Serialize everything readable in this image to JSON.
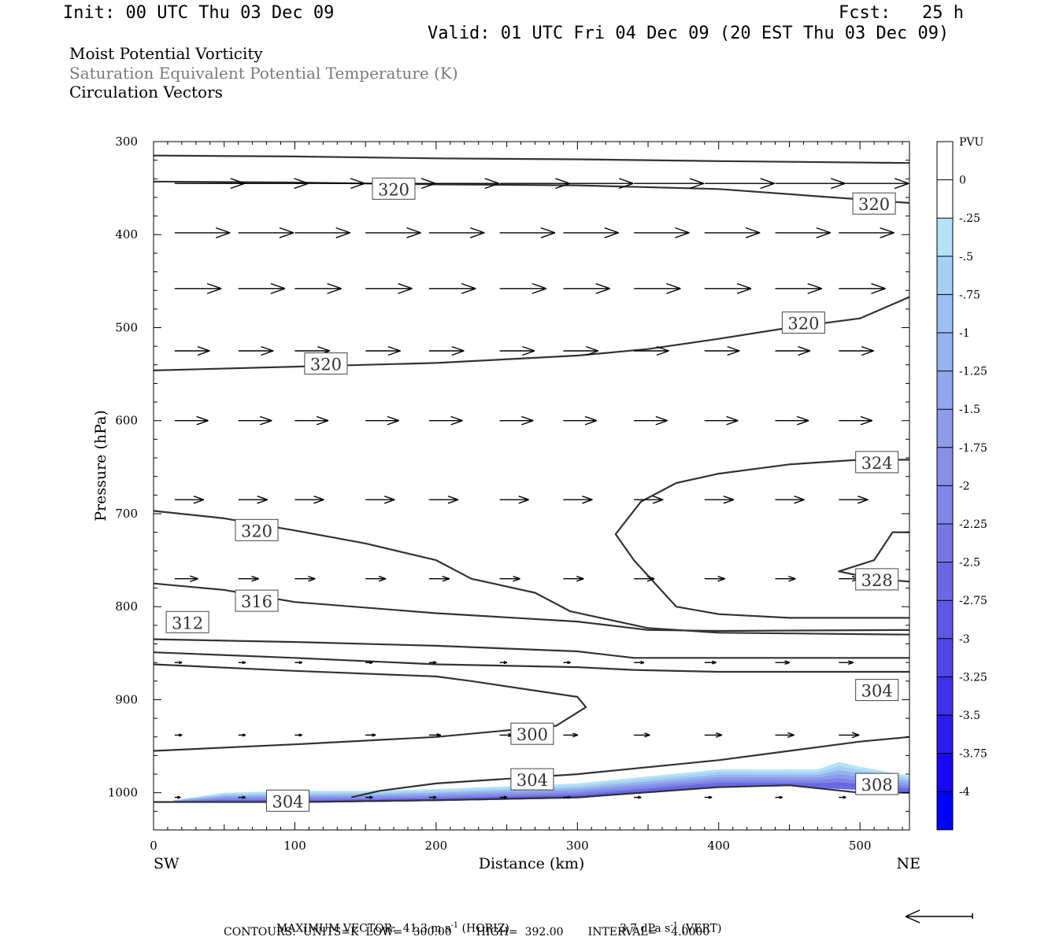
{
  "header": {
    "init": "Init: 00 UTC Thu 03 Dec 09",
    "fcst": "Fcst:   25 h",
    "valid": "Valid: 01 UTC Fri 04 Dec 09 (20 EST Thu 03 Dec 09)",
    "line1": "Moist Potential Vorticity",
    "line2": "Saturation Equivalent Potential Temperature (K)",
    "line3": "Circulation Vectors"
  },
  "footer": {
    "max_vector_prefix": "MAXIMUM VECTOR:  41.3 m s",
    "horiz_suffix": " (HORIZ)",
    "vert_prefix": "3.7 dPa s",
    "vert_suffix": " (VERT)",
    "exponent": "-1",
    "contours": "CONTOURS:  UNITS=K  LOW=   300.00       HIGH=  392.00       INTERVAL=    4.0000"
  },
  "chart_data": {
    "type": "line",
    "xlabel": "Distance (km)",
    "ylabel": "Pressure (hPa)",
    "xlim": [
      0,
      535
    ],
    "ylim": [
      1040,
      300
    ],
    "x_ticks": [
      "0",
      "100",
      "200",
      "300",
      "400",
      "500"
    ],
    "y_ticks": [
      "300",
      "400",
      "500",
      "600",
      "700",
      "800",
      "900",
      "1000"
    ],
    "x_end_labels": {
      "left": "SW",
      "right": "NE"
    },
    "colorbar": {
      "title": "PVU",
      "levels": [
        "0",
        "-.25",
        "-.5",
        "-.75",
        "-1",
        "-1.25",
        "-1.5",
        "-1.75",
        "-2",
        "-2.25",
        "-2.5",
        "-2.75",
        "-3",
        "-3.25",
        "-3.5",
        "-3.75",
        "-4"
      ],
      "colors": [
        "#ffffff",
        "#ffffff",
        "#b4e2f8",
        "#a5d0f5",
        "#9bbff2",
        "#97b2ef",
        "#92a7ec",
        "#8c9ae9",
        "#8690e8",
        "#7f85e6",
        "#7677e5",
        "#6b68e5",
        "#5f57e6",
        "#5145e8",
        "#3f30ea",
        "#2c1cee",
        "#1808f5",
        "#0000ff"
      ]
    },
    "contour_lines": [
      {
        "label": "320",
        "points": [
          [
            0,
            315
          ],
          [
            100,
            316
          ],
          [
            200,
            318
          ],
          [
            300,
            319
          ],
          [
            400,
            321
          ],
          [
            535,
            323
          ]
        ]
      },
      {
        "label": "320",
        "points": [
          [
            0,
            343
          ],
          [
            100,
            344
          ],
          [
            200,
            346
          ],
          [
            300,
            347
          ],
          [
            400,
            351
          ],
          [
            535,
            366
          ]
        ]
      },
      {
        "label": "320",
        "points": [
          [
            0,
            546
          ],
          [
            100,
            542
          ],
          [
            200,
            538
          ],
          [
            300,
            530
          ],
          [
            350,
            523
          ],
          [
            400,
            512
          ],
          [
            450,
            500
          ],
          [
            500,
            490
          ],
          [
            535,
            467
          ]
        ]
      },
      {
        "label": "324",
        "points": [
          [
            535,
            642
          ],
          [
            500,
            642
          ],
          [
            450,
            647
          ],
          [
            400,
            657
          ],
          [
            370,
            667
          ],
          [
            345,
            687
          ],
          [
            327,
            722
          ],
          [
            340,
            750
          ],
          [
            355,
            775
          ],
          [
            370,
            800
          ],
          [
            400,
            808
          ],
          [
            450,
            812
          ],
          [
            535,
            812
          ]
        ]
      },
      {
        "label": "328",
        "points": [
          [
            535,
            720
          ],
          [
            523,
            720
          ],
          [
            510,
            750
          ],
          [
            485,
            762
          ],
          [
            510,
            770
          ],
          [
            535,
            773
          ]
        ]
      },
      {
        "label": "320",
        "points": [
          [
            0,
            697
          ],
          [
            50,
            705
          ],
          [
            100,
            718
          ],
          [
            150,
            732
          ],
          [
            200,
            750
          ],
          [
            225,
            770
          ],
          [
            270,
            785
          ],
          [
            295,
            805
          ],
          [
            350,
            823
          ],
          [
            400,
            828
          ],
          [
            535,
            830
          ]
        ]
      },
      {
        "label": "316",
        "points": [
          [
            0,
            775
          ],
          [
            50,
            782
          ],
          [
            100,
            795
          ],
          [
            200,
            807
          ],
          [
            300,
            816
          ],
          [
            350,
            825
          ],
          [
            400,
            826
          ],
          [
            535,
            825
          ]
        ]
      },
      {
        "label": "312",
        "points": [
          [
            0,
            835
          ],
          [
            100,
            838
          ],
          [
            200,
            842
          ],
          [
            300,
            848
          ],
          [
            340,
            855
          ],
          [
            400,
            855
          ],
          [
            535,
            855
          ]
        ]
      },
      {
        "label": "308",
        "points": [
          [
            0,
            849
          ],
          [
            100,
            855
          ],
          [
            200,
            862
          ],
          [
            300,
            865
          ],
          [
            340,
            868
          ],
          [
            400,
            870
          ],
          [
            535,
            870
          ]
        ]
      },
      {
        "label": "304",
        "points": [
          [
            0,
            862
          ],
          [
            100,
            869
          ],
          [
            200,
            875
          ],
          [
            225,
            880
          ],
          [
            300,
            897
          ],
          [
            306,
            908
          ],
          [
            285,
            928
          ],
          [
            250,
            933
          ],
          [
            200,
            940
          ],
          [
            100,
            948
          ],
          [
            0,
            955
          ]
        ]
      },
      {
        "label": "304",
        "points": [
          [
            0,
            1010
          ],
          [
            100,
            1010
          ],
          [
            200,
            1008
          ],
          [
            300,
            1005
          ],
          [
            400,
            994
          ],
          [
            450,
            992
          ],
          [
            500,
            1000
          ],
          [
            535,
            1000
          ]
        ]
      },
      {
        "label": "304",
        "points": [
          [
            140,
            1005
          ],
          [
            160,
            998
          ],
          [
            200,
            990
          ],
          [
            300,
            980
          ],
          [
            400,
            965
          ],
          [
            450,
            955
          ],
          [
            500,
            945
          ],
          [
            535,
            940
          ]
        ]
      }
    ],
    "contour_labels": [
      {
        "value": "320",
        "x": 170,
        "p": 351
      },
      {
        "value": "320",
        "x": 510,
        "p": 367
      },
      {
        "value": "320",
        "x": 460,
        "p": 495
      },
      {
        "value": "320",
        "x": 122,
        "p": 539
      },
      {
        "value": "324",
        "x": 512,
        "p": 645
      },
      {
        "value": "320",
        "x": 73,
        "p": 718
      },
      {
        "value": "328",
        "x": 512,
        "p": 771
      },
      {
        "value": "316",
        "x": 73,
        "p": 794
      },
      {
        "value": "312",
        "x": 24,
        "p": 817
      },
      {
        "value": "304",
        "x": 512,
        "p": 890
      },
      {
        "value": "300",
        "x": 268,
        "p": 937
      },
      {
        "value": "304",
        "x": 268,
        "p": 986
      },
      {
        "value": "308",
        "x": 512,
        "p": 991
      },
      {
        "value": "304",
        "x": 95,
        "p": 1009
      }
    ],
    "shaded_region": {
      "pv_range_pvu": [
        -0.25,
        -3.0
      ],
      "top": [
        [
          14,
          1008
        ],
        [
          50,
          1000
        ],
        [
          100,
          998
        ],
        [
          150,
          998
        ],
        [
          200,
          996
        ],
        [
          300,
          990
        ],
        [
          400,
          975
        ],
        [
          470,
          975
        ],
        [
          485,
          967
        ],
        [
          500,
          972
        ],
        [
          535,
          982
        ]
      ],
      "bottom": [
        [
          535,
          1000
        ],
        [
          500,
          997
        ],
        [
          450,
          993
        ],
        [
          400,
          994
        ],
        [
          300,
          1006
        ],
        [
          200,
          1009
        ],
        [
          100,
          1011
        ],
        [
          14,
          1010
        ]
      ]
    },
    "vector_rows": [
      {
        "p": 345,
        "u": [
          48,
          48,
          48,
          48,
          48,
          48,
          48,
          48,
          48,
          48,
          48
        ],
        "w": [
          0,
          0,
          0,
          0,
          0,
          0,
          0,
          0,
          0,
          0,
          0
        ]
      },
      {
        "p": 398,
        "u": [
          38,
          38,
          38,
          38,
          38,
          38,
          38,
          38,
          38,
          38,
          38
        ],
        "w": [
          0,
          0,
          0,
          0,
          0,
          0,
          0,
          0,
          0,
          0,
          0
        ]
      },
      {
        "p": 458,
        "u": [
          32,
          32,
          32,
          32,
          32,
          32,
          32,
          32,
          32,
          32,
          32
        ],
        "w": [
          0,
          0,
          0,
          0,
          0,
          0,
          0,
          0,
          0,
          0,
          0
        ]
      },
      {
        "p": 525,
        "u": [
          24,
          24,
          24,
          24,
          24,
          24,
          24,
          24,
          24,
          24,
          24
        ],
        "w": [
          0,
          0,
          0,
          0,
          0,
          0,
          0,
          0,
          0,
          0,
          0
        ]
      },
      {
        "p": 600,
        "u": [
          23,
          23,
          23,
          23,
          23,
          23,
          23,
          23,
          23,
          23,
          23
        ],
        "w": [
          0,
          0,
          0,
          0,
          0,
          0,
          0,
          0,
          0,
          0,
          0
        ]
      },
      {
        "p": 685,
        "u": [
          20,
          20,
          20,
          20,
          20,
          20,
          20,
          20,
          20,
          20,
          20
        ],
        "w": [
          0,
          0,
          0,
          0,
          0,
          0,
          0,
          0,
          0,
          0,
          0
        ]
      },
      {
        "p": 770,
        "u": [
          16,
          14,
          14,
          14,
          14,
          14,
          14,
          14,
          14,
          14,
          14
        ],
        "w": [
          0,
          0,
          0,
          0,
          0,
          0,
          0,
          0,
          0,
          0,
          0
        ]
      },
      {
        "p": 860,
        "u": [
          5,
          5,
          5,
          5,
          5,
          5,
          5,
          7,
          8,
          10,
          10
        ],
        "w": [
          0,
          0,
          0,
          0,
          0,
          0,
          0,
          0,
          0,
          0,
          0
        ]
      },
      {
        "p": 938,
        "u": [
          5,
          5,
          5,
          7,
          8,
          9,
          10,
          11,
          12,
          13,
          14
        ],
        "w": [
          0,
          0,
          0,
          0,
          0,
          0,
          0,
          0,
          0,
          0,
          0
        ]
      },
      {
        "p": 1005,
        "u": [
          4,
          5,
          5,
          5,
          5,
          5,
          5,
          5,
          5,
          5,
          5
        ],
        "w": [
          0,
          0,
          0,
          0,
          0,
          0,
          0,
          0,
          0,
          0,
          0
        ]
      }
    ],
    "vector_x": [
      15,
      60,
      100,
      150,
      195,
      245,
      290,
      340,
      390,
      440,
      485
    ]
  }
}
